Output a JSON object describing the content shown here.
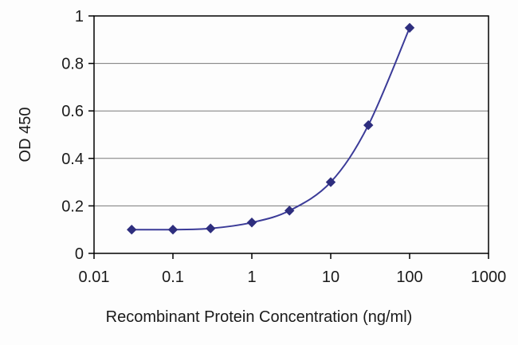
{
  "chart_data": {
    "type": "line",
    "title": "",
    "xlabel": "Recombinant Protein Concentration (ng/ml)",
    "ylabel": "OD 450",
    "x_scale": "log",
    "xlim": [
      0.01,
      1000
    ],
    "ylim": [
      0,
      1
    ],
    "x_ticks": [
      0.01,
      0.1,
      1,
      10,
      100,
      1000
    ],
    "x_tick_labels": [
      "0.01",
      "0.1",
      "1",
      "10",
      "100",
      "1000"
    ],
    "y_ticks": [
      0,
      0.2,
      0.4,
      0.6,
      0.8,
      1
    ],
    "y_tick_labels": [
      "0",
      "0.2",
      "0.4",
      "0.6",
      "0.8",
      "1"
    ],
    "grid": "horizontal",
    "legend": "none",
    "series": [
      {
        "name": "OD 450",
        "marker": "diamond",
        "color": "#3b3b98",
        "marker_color": "#2e2e7e",
        "x": [
          0.03,
          0.1,
          0.3,
          1,
          3,
          10,
          30,
          100
        ],
        "y": [
          0.1,
          0.1,
          0.105,
          0.13,
          0.18,
          0.3,
          0.54,
          0.95
        ]
      }
    ],
    "colors": {
      "axis": "#000000",
      "gridline": "#7a7a7a",
      "background": "#fdfdfd"
    }
  }
}
